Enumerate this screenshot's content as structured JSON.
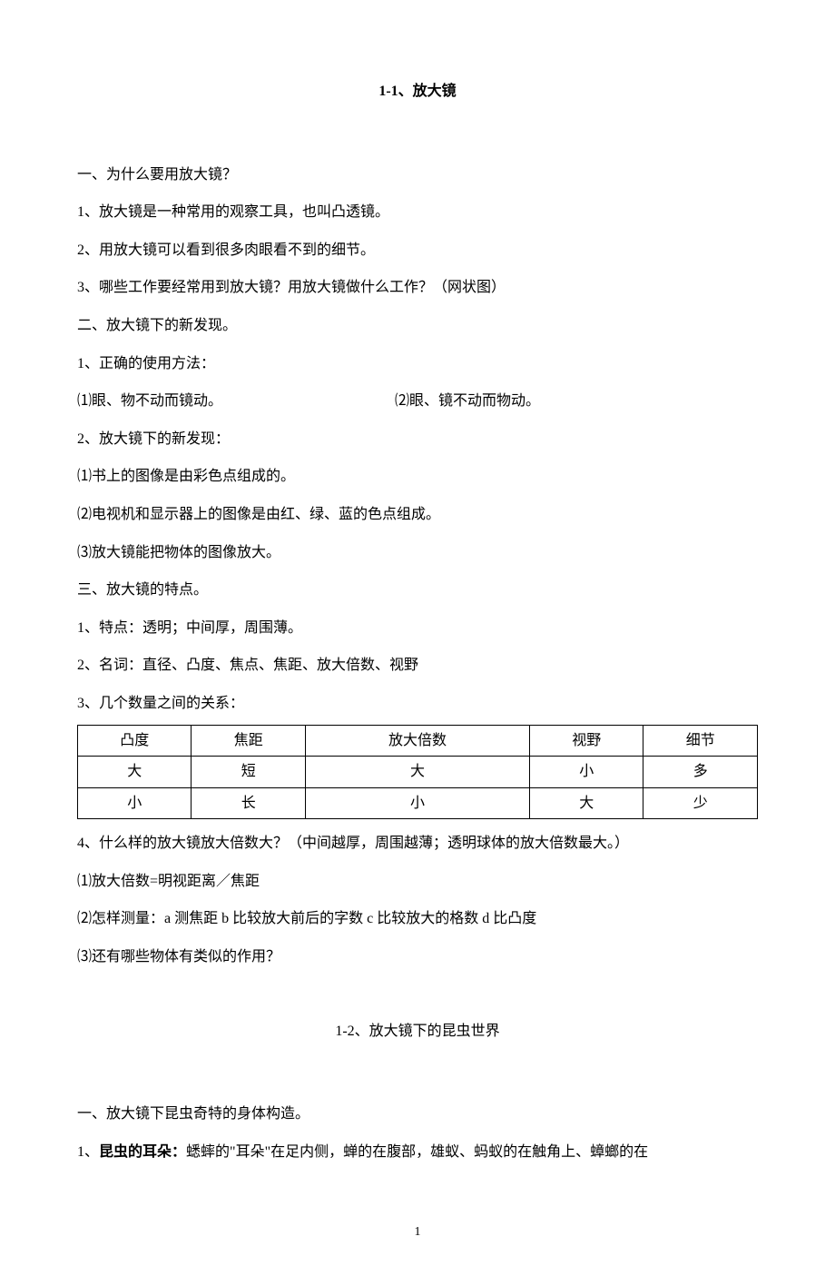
{
  "title1": "1-1、放大镜",
  "section1": {
    "heading": "一、为什么要用放大镜？",
    "p1": "1、放大镜是一种常用的观察工具，也叫凸透镜。",
    "p2": "2、用放大镜可以看到很多肉眼看不到的细节。",
    "p3": "3、哪些工作要经常用到放大镜？用放大镜做什么工作？（网状图）"
  },
  "section2": {
    "heading": "二、放大镜下的新发现。",
    "p1": "1、正确的使用方法：",
    "p1a": "⑴眼、物不动而镜动。",
    "p1b": "⑵眼、镜不动而物动。",
    "p2": "2、放大镜下的新发现：",
    "p2a": "⑴书上的图像是由彩色点组成的。",
    "p2b": "⑵电视机和显示器上的图像是由红、绿、蓝的色点组成。",
    "p2c": "⑶放大镜能把物体的图像放大。"
  },
  "section3": {
    "heading": "三、放大镜的特点。",
    "p1": "1、特点：透明；中间厚，周围薄。",
    "p2": "2、名词：直径、凸度、焦点、焦距、放大倍数、视野",
    "p3": "3、几个数量之间的关系：",
    "table": {
      "headers": [
        "凸度",
        "焦距",
        "放大倍数",
        "视野",
        "细节"
      ],
      "rows": [
        [
          "大",
          "短",
          "大",
          "小",
          "多"
        ],
        [
          "小",
          "长",
          "小",
          "大",
          "少"
        ]
      ]
    },
    "p4": "4、什么样的放大镜放大倍数大？（中间越厚，周围越薄；透明球体的放大倍数最大。）",
    "p4a": "⑴放大倍数=明视距离／焦距",
    "p4b": "⑵怎样测量：a 测焦距  b 比较放大前后的字数    c  比较放大的格数    d 比凸度",
    "p4c": "⑶还有哪些物体有类似的作用？"
  },
  "title2": "1-2、放大镜下的昆虫世界",
  "section4": {
    "heading": "一、放大镜下昆虫奇特的身体构造。",
    "p1_bold": "昆虫的耳朵：",
    "p1_prefix": "1、",
    "p1_rest": "蟋蟀的\"耳朵\"在足内侧，蝉的在腹部，雄蚁、蚂蚁的在触角上、蟑螂的在"
  },
  "pageNumber": "1"
}
